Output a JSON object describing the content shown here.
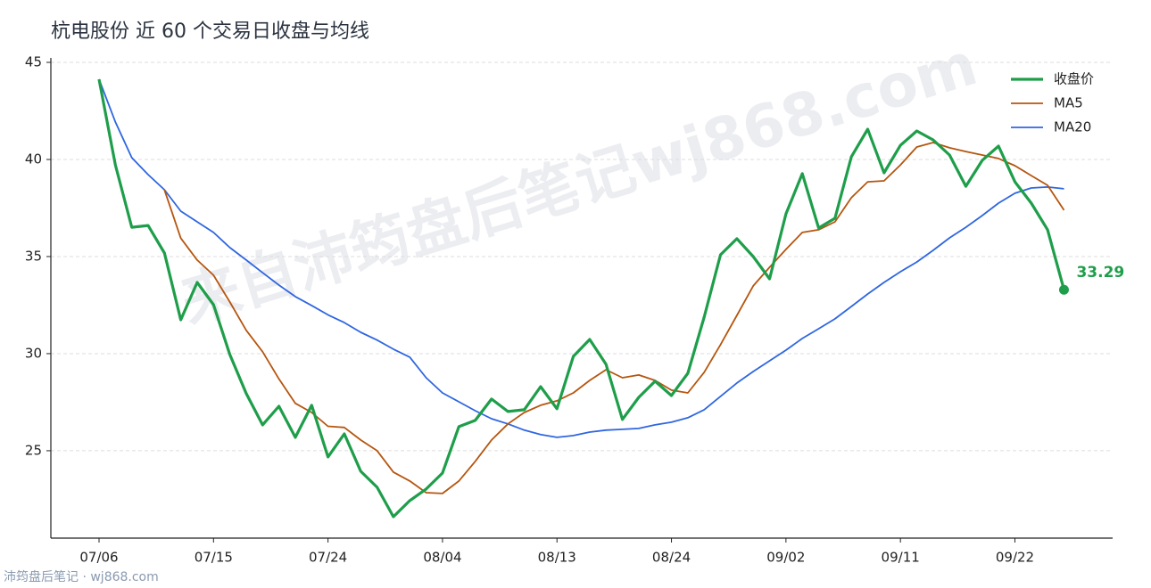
{
  "chart_data": {
    "type": "line",
    "title": "杭电股份 近 60 个交易日收盘与均线",
    "watermark": "来自沛筠盘后笔记wj868.com",
    "footer": "沛筠盘后笔记 · wj868.com",
    "categories": [
      "07/06",
      null,
      null,
      null,
      null,
      null,
      null,
      "07/15",
      null,
      null,
      null,
      null,
      null,
      null,
      "07/24",
      null,
      null,
      null,
      null,
      null,
      null,
      "08/04",
      null,
      null,
      null,
      null,
      null,
      null,
      "08/13",
      null,
      null,
      null,
      null,
      null,
      null,
      "08/24",
      null,
      null,
      null,
      null,
      null,
      null,
      "09/02",
      null,
      null,
      null,
      null,
      null,
      null,
      "09/11",
      null,
      null,
      null,
      null,
      null,
      null,
      "09/22",
      null,
      null,
      null
    ],
    "series": [
      {
        "name": "收盘价",
        "color": "#1e9e4a",
        "width": 3.2,
        "values": [
          44.13,
          39.72,
          36.51,
          36.6,
          35.18,
          31.74,
          33.67,
          32.52,
          29.95,
          27.94,
          26.33,
          27.29,
          25.69,
          27.34,
          24.68,
          25.87,
          23.94,
          23.12,
          21.6,
          22.43,
          23.03,
          23.85,
          26.24,
          26.56,
          27.66,
          27.02,
          27.11,
          28.3,
          27.16,
          29.86,
          30.73,
          29.45,
          26.61,
          27.75,
          28.58,
          27.84,
          28.99,
          31.88,
          35.09,
          35.92,
          35.0,
          33.85,
          37.2,
          39.27,
          36.47,
          36.97,
          40.14,
          41.56,
          39.31,
          40.73,
          41.47,
          41.01,
          40.23,
          38.62,
          39.95,
          40.69,
          38.85,
          37.75,
          36.38,
          33.29
        ]
      },
      {
        "name": "MA5",
        "color": "#b5560f",
        "width": 1.8,
        "values": [
          null,
          null,
          null,
          null,
          38.43,
          35.95,
          34.82,
          34.04,
          32.66,
          31.2,
          30.1,
          28.7,
          27.44,
          26.97,
          26.26,
          26.2,
          25.55,
          25.0,
          23.9,
          23.44,
          22.84,
          22.8,
          23.44,
          24.45,
          25.55,
          26.38,
          26.97,
          27.34,
          27.57,
          27.98,
          28.62,
          29.17,
          28.76,
          28.9,
          28.62,
          28.12,
          27.98,
          29.04,
          30.46,
          31.97,
          33.49,
          34.45,
          35.37,
          36.24,
          36.38,
          36.79,
          38.03,
          38.85,
          38.9,
          39.72,
          40.64,
          40.87,
          40.6,
          40.41,
          40.23,
          40.05,
          39.68,
          39.17,
          38.67,
          37.39
        ]
      },
      {
        "name": "MA20",
        "color": "#2f66e0",
        "width": 1.8,
        "values": [
          44.13,
          41.93,
          40.09,
          39.22,
          38.44,
          37.34,
          36.79,
          36.24,
          35.46,
          34.82,
          34.17,
          33.53,
          32.94,
          32.48,
          32.0,
          31.6,
          31.1,
          30.7,
          30.23,
          29.82,
          28.76,
          27.98,
          27.52,
          27.06,
          26.65,
          26.38,
          26.06,
          25.83,
          25.69,
          25.78,
          25.96,
          26.06,
          26.1,
          26.15,
          26.33,
          26.47,
          26.7,
          27.11,
          27.8,
          28.49,
          29.08,
          29.63,
          30.18,
          30.78,
          31.28,
          31.79,
          32.43,
          33.07,
          33.67,
          34.22,
          34.72,
          35.32,
          35.96,
          36.51,
          37.11,
          37.75,
          38.26,
          38.53,
          38.58,
          38.49
        ]
      }
    ],
    "ylim": [
      20.5,
      45.23
    ],
    "yticks": [
      25,
      30,
      35,
      40,
      45
    ],
    "grid": true,
    "legend": "upper right"
  }
}
